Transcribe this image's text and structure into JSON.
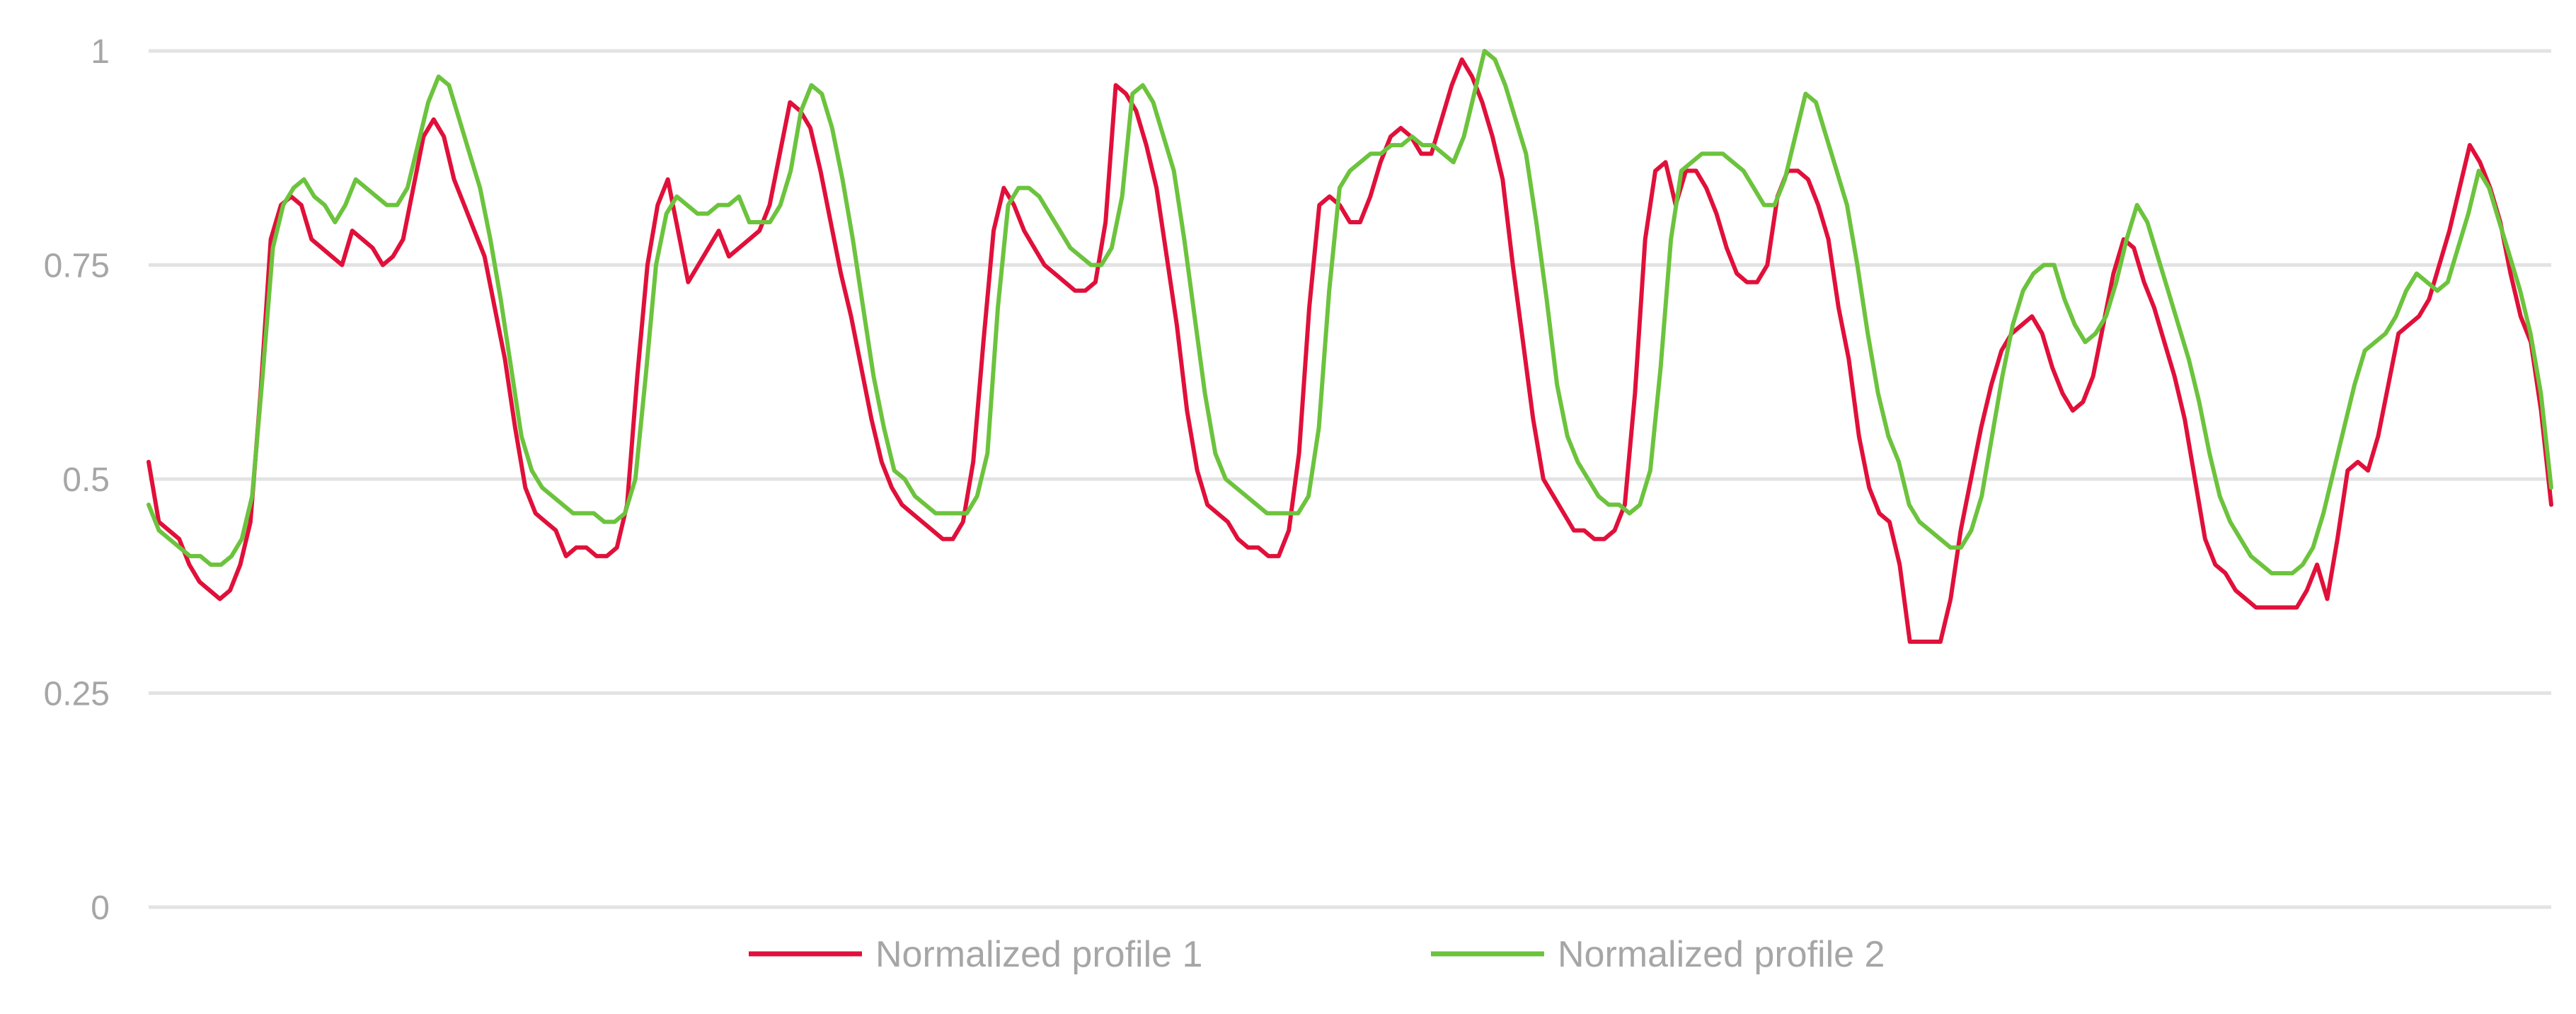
{
  "chart_data": {
    "type": "line",
    "title": "",
    "xlabel": "",
    "ylabel": "",
    "ylim": [
      0,
      1
    ],
    "y_ticks": [
      0,
      0.25,
      0.5,
      0.75,
      1
    ],
    "y_tick_labels": [
      "0",
      "0.25",
      "0.5",
      "0.75",
      "1"
    ],
    "grid": true,
    "legend_position": "bottom",
    "series": [
      {
        "name": "Normalized profile 1",
        "color": "#e0103a",
        "values": [
          0.52,
          0.45,
          0.44,
          0.43,
          0.4,
          0.38,
          0.37,
          0.36,
          0.37,
          0.4,
          0.45,
          0.6,
          0.78,
          0.82,
          0.83,
          0.82,
          0.78,
          0.77,
          0.76,
          0.75,
          0.79,
          0.78,
          0.77,
          0.75,
          0.76,
          0.78,
          0.84,
          0.9,
          0.92,
          0.9,
          0.85,
          0.82,
          0.79,
          0.76,
          0.7,
          0.64,
          0.56,
          0.49,
          0.46,
          0.45,
          0.44,
          0.41,
          0.42,
          0.42,
          0.41,
          0.41,
          0.42,
          0.47,
          0.62,
          0.75,
          0.82,
          0.85,
          0.79,
          0.73,
          0.75,
          0.77,
          0.79,
          0.76,
          0.77,
          0.78,
          0.79,
          0.82,
          0.88,
          0.94,
          0.93,
          0.91,
          0.86,
          0.8,
          0.74,
          0.69,
          0.63,
          0.57,
          0.52,
          0.49,
          0.47,
          0.46,
          0.45,
          0.44,
          0.43,
          0.43,
          0.45,
          0.52,
          0.66,
          0.79,
          0.84,
          0.82,
          0.79,
          0.77,
          0.75,
          0.74,
          0.73,
          0.72,
          0.72,
          0.73,
          0.8,
          0.96,
          0.95,
          0.93,
          0.89,
          0.84,
          0.76,
          0.68,
          0.58,
          0.51,
          0.47,
          0.46,
          0.45,
          0.43,
          0.42,
          0.42,
          0.41,
          0.41,
          0.44,
          0.53,
          0.7,
          0.82,
          0.83,
          0.82,
          0.8,
          0.8,
          0.83,
          0.87,
          0.9,
          0.91,
          0.9,
          0.88,
          0.88,
          0.92,
          0.96,
          0.99,
          0.97,
          0.94,
          0.9,
          0.85,
          0.75,
          0.66,
          0.57,
          0.5,
          0.48,
          0.46,
          0.44,
          0.44,
          0.43,
          0.43,
          0.44,
          0.47,
          0.6,
          0.78,
          0.86,
          0.87,
          0.82,
          0.86,
          0.86,
          0.84,
          0.81,
          0.77,
          0.74,
          0.73,
          0.73,
          0.75,
          0.83,
          0.86,
          0.86,
          0.85,
          0.82,
          0.78,
          0.7,
          0.64,
          0.55,
          0.49,
          0.46,
          0.45,
          0.4,
          0.31,
          0.31,
          0.31,
          0.31,
          0.36,
          0.44,
          0.5,
          0.56,
          0.61,
          0.65,
          0.67,
          0.68,
          0.69,
          0.67,
          0.63,
          0.6,
          0.58,
          0.59,
          0.62,
          0.68,
          0.74,
          0.78,
          0.77,
          0.73,
          0.7,
          0.66,
          0.62,
          0.57,
          0.5,
          0.43,
          0.4,
          0.39,
          0.37,
          0.36,
          0.35,
          0.35,
          0.35,
          0.35,
          0.35,
          0.37,
          0.4,
          0.36,
          0.43,
          0.51,
          0.52,
          0.51,
          0.55,
          0.61,
          0.67,
          0.68,
          0.69,
          0.71,
          0.75,
          0.79,
          0.84,
          0.89,
          0.87,
          0.84,
          0.8,
          0.74,
          0.69,
          0.66,
          0.58,
          0.47
        ]
      },
      {
        "name": "Normalized profile 2",
        "color": "#6cc33d",
        "values": [
          0.47,
          0.44,
          0.43,
          0.42,
          0.41,
          0.41,
          0.4,
          0.4,
          0.41,
          0.43,
          0.48,
          0.62,
          0.77,
          0.82,
          0.84,
          0.85,
          0.83,
          0.82,
          0.8,
          0.82,
          0.85,
          0.84,
          0.83,
          0.82,
          0.82,
          0.84,
          0.89,
          0.94,
          0.97,
          0.96,
          0.92,
          0.88,
          0.84,
          0.78,
          0.71,
          0.63,
          0.55,
          0.51,
          0.49,
          0.48,
          0.47,
          0.46,
          0.46,
          0.46,
          0.45,
          0.45,
          0.46,
          0.5,
          0.62,
          0.75,
          0.81,
          0.83,
          0.82,
          0.81,
          0.81,
          0.82,
          0.82,
          0.83,
          0.8,
          0.8,
          0.8,
          0.82,
          0.86,
          0.93,
          0.96,
          0.95,
          0.91,
          0.85,
          0.78,
          0.7,
          0.62,
          0.56,
          0.51,
          0.5,
          0.48,
          0.47,
          0.46,
          0.46,
          0.46,
          0.46,
          0.48,
          0.53,
          0.7,
          0.82,
          0.84,
          0.84,
          0.83,
          0.81,
          0.79,
          0.77,
          0.76,
          0.75,
          0.75,
          0.77,
          0.83,
          0.95,
          0.96,
          0.94,
          0.9,
          0.86,
          0.78,
          0.69,
          0.6,
          0.53,
          0.5,
          0.49,
          0.48,
          0.47,
          0.46,
          0.46,
          0.46,
          0.46,
          0.48,
          0.56,
          0.72,
          0.84,
          0.86,
          0.87,
          0.88,
          0.88,
          0.89,
          0.89,
          0.9,
          0.89,
          0.89,
          0.88,
          0.87,
          0.9,
          0.95,
          1.0,
          0.99,
          0.96,
          0.92,
          0.88,
          0.8,
          0.71,
          0.61,
          0.55,
          0.52,
          0.5,
          0.48,
          0.47,
          0.47,
          0.46,
          0.47,
          0.51,
          0.63,
          0.78,
          0.86,
          0.87,
          0.88,
          0.88,
          0.88,
          0.87,
          0.86,
          0.84,
          0.82,
          0.82,
          0.85,
          0.9,
          0.95,
          0.94,
          0.9,
          0.86,
          0.82,
          0.75,
          0.67,
          0.6,
          0.55,
          0.52,
          0.47,
          0.45,
          0.44,
          0.43,
          0.42,
          0.42,
          0.44,
          0.48,
          0.55,
          0.62,
          0.68,
          0.72,
          0.74,
          0.75,
          0.75,
          0.71,
          0.68,
          0.66,
          0.67,
          0.69,
          0.73,
          0.78,
          0.82,
          0.8,
          0.76,
          0.72,
          0.68,
          0.64,
          0.59,
          0.53,
          0.48,
          0.45,
          0.43,
          0.41,
          0.4,
          0.39,
          0.39,
          0.39,
          0.4,
          0.42,
          0.46,
          0.51,
          0.56,
          0.61,
          0.65,
          0.66,
          0.67,
          0.69,
          0.72,
          0.74,
          0.73,
          0.72,
          0.73,
          0.77,
          0.81,
          0.86,
          0.84,
          0.8,
          0.76,
          0.72,
          0.67,
          0.6,
          0.49
        ]
      }
    ]
  }
}
